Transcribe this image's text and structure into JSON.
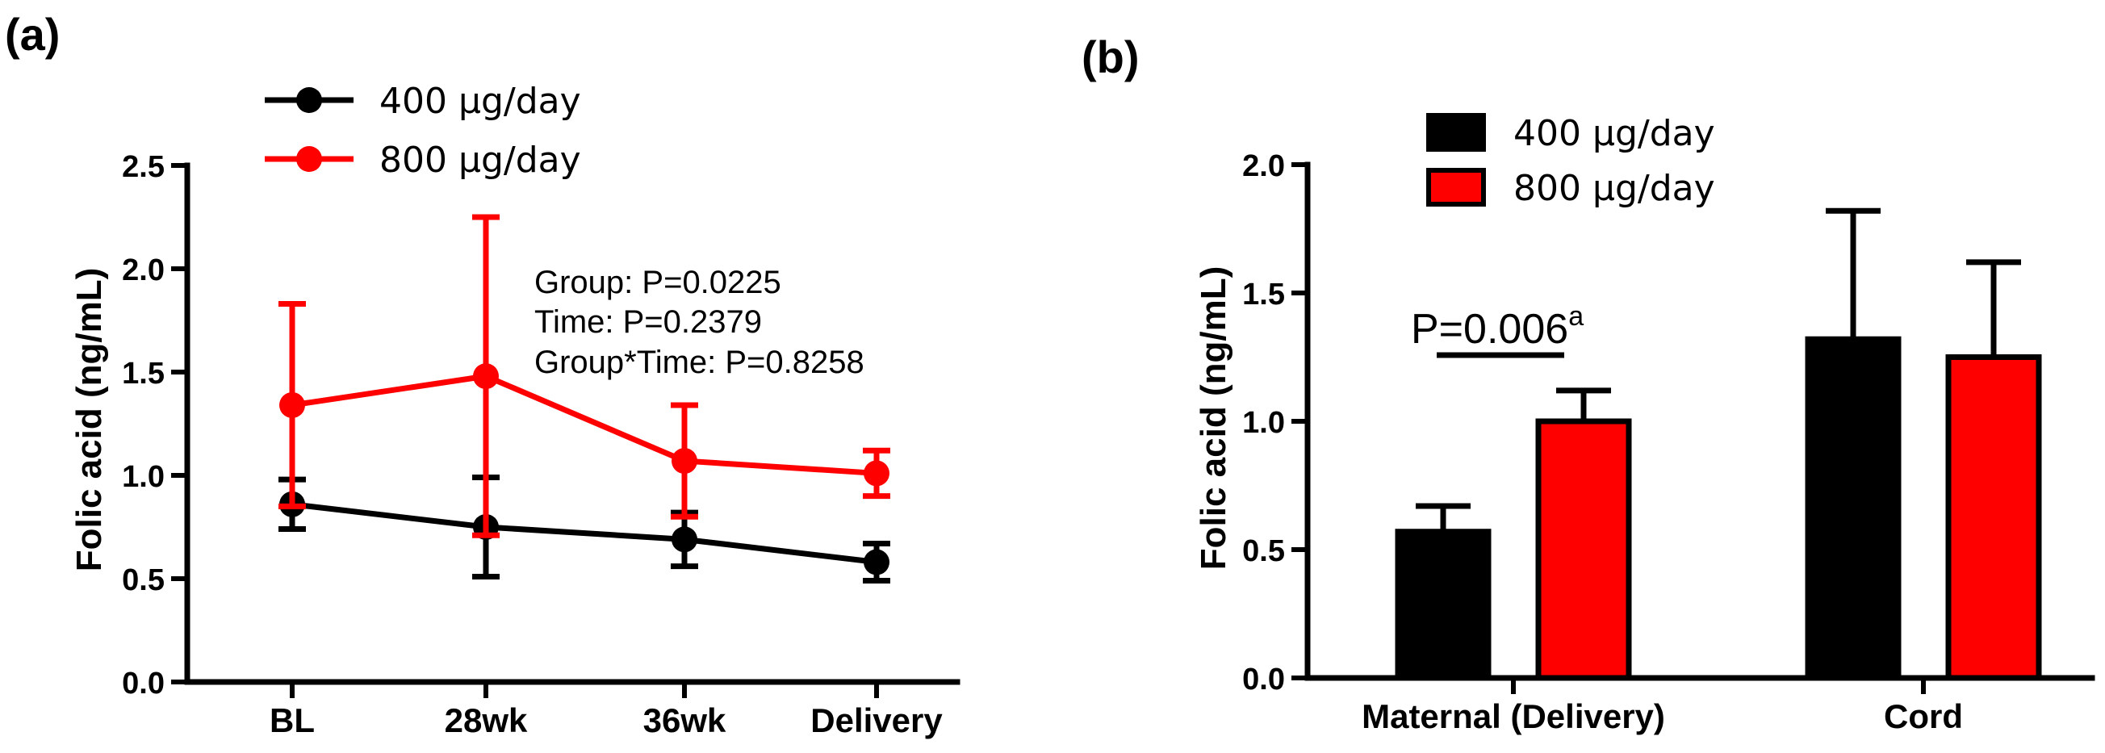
{
  "colors": {
    "group400": "#000000",
    "group800": "#ff0000"
  },
  "chart_data": [
    {
      "panel_label": "(a)",
      "type": "line",
      "title": "",
      "xlabel": "",
      "ylabel": "Folic acid (ng/mL)",
      "categories": [
        "BL",
        "28wk",
        "36wk",
        "Delivery"
      ],
      "ylim": [
        0,
        2.5
      ],
      "yticks": [
        "0.0",
        "0.5",
        "1.0",
        "1.5",
        "2.0",
        "2.5"
      ],
      "legend": {
        "placement": "top-left",
        "entries": [
          "400 μg/day",
          "800 μg/day"
        ]
      },
      "series": [
        {
          "name": "400 μg/day",
          "color": "#000000",
          "values": [
            0.86,
            0.75,
            0.69,
            0.58
          ],
          "err": [
            0.12,
            0.24,
            0.13,
            0.09
          ]
        },
        {
          "name": "800 μg/day",
          "color": "#ff0000",
          "values": [
            1.34,
            1.48,
            1.07,
            1.01
          ],
          "err": [
            0.49,
            0.77,
            0.27,
            0.11
          ]
        }
      ],
      "annotations": [
        "Group: P=0.0225",
        "Time: P=0.2379",
        "Group*Time: P=0.8258"
      ]
    },
    {
      "panel_label": "(b)",
      "type": "bar",
      "title": "",
      "xlabel": "",
      "ylabel": "Folic acid (ng/mL)",
      "categories": [
        "Maternal (Delivery)",
        "Cord"
      ],
      "ylim": [
        0,
        2.0
      ],
      "yticks": [
        "0.0",
        "0.5",
        "1.0",
        "1.5",
        "2.0"
      ],
      "legend": {
        "placement": "top-center",
        "entries": [
          "400 μg/day",
          "800 μg/day"
        ]
      },
      "series": [
        {
          "name": "400 μg/day",
          "color": "#000000",
          "values": [
            0.57,
            1.32
          ],
          "err": [
            0.1,
            0.5
          ]
        },
        {
          "name": "800 μg/day",
          "color": "#ff0000",
          "values": [
            1.0,
            1.25
          ],
          "err": [
            0.12,
            0.37
          ]
        }
      ],
      "significance": {
        "text": "P=0.006",
        "superscript": "a",
        "category": "Maternal (Delivery)"
      }
    }
  ]
}
